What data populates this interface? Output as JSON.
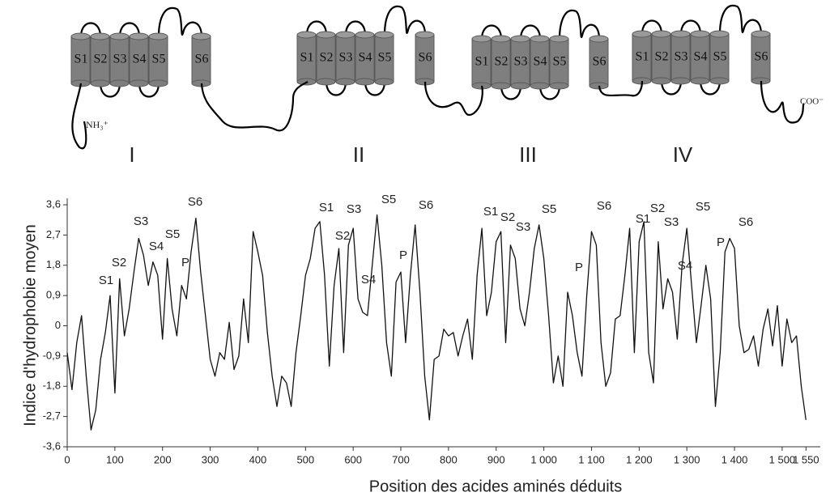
{
  "diagram": {
    "domains": [
      {
        "label": "I",
        "segments": [
          "S1",
          "S2",
          "S3",
          "S4",
          "S5",
          "S6"
        ]
      },
      {
        "label": "II",
        "segments": [
          "S1",
          "S2",
          "S3",
          "S4",
          "S5",
          "S6"
        ]
      },
      {
        "label": "III",
        "segments": [
          "S1",
          "S2",
          "S3",
          "S4",
          "S5",
          "S6"
        ]
      },
      {
        "label": "IV",
        "segments": [
          "S1",
          "S2",
          "S3",
          "S4",
          "S5",
          "S6"
        ]
      }
    ],
    "n_terminus": "NH₃⁺",
    "c_terminus": "COO⁻"
  },
  "chart_data": {
    "type": "line",
    "xlabel": "Position des acides aminés déduits",
    "ylabel": "Indice d'hydrophobie moyen",
    "color": "#111111",
    "xlim": [
      0,
      1580
    ],
    "ylim": [
      -3.6,
      3.6
    ],
    "xticks": [
      0,
      100,
      200,
      300,
      400,
      500,
      600,
      700,
      800,
      900,
      {
        "value": 1000,
        "label": "1 000"
      },
      {
        "value": 1100,
        "label": "1 100"
      },
      {
        "value": 1200,
        "label": "1 200"
      },
      {
        "value": 1300,
        "label": "1 300"
      },
      {
        "value": 1400,
        "label": "1 400"
      },
      {
        "value": 1500,
        "label": "1 500"
      },
      {
        "value": 1550,
        "label": "1 550"
      }
    ],
    "yticks": [
      {
        "value": 3.6,
        "label": "3,6"
      },
      {
        "value": 2.7,
        "label": "2,7"
      },
      {
        "value": 1.8,
        "label": "1,8"
      },
      {
        "value": 0.9,
        "label": "0,9"
      },
      0,
      {
        "value": -0.9,
        "label": "-0,9"
      },
      {
        "value": -1.8,
        "label": "-1,8"
      },
      {
        "value": -2.7,
        "label": "-2,7"
      },
      {
        "value": -3.6,
        "label": "-3,6"
      }
    ],
    "annotations": [
      "S1",
      "S2",
      "S3",
      "S4",
      "S5",
      "P",
      "S6",
      "S1",
      "S2",
      "S3",
      "S4",
      "S5",
      "P",
      "S6",
      "S1",
      "S2",
      "S3",
      "S5",
      "P",
      "S6",
      "S1",
      "S2",
      "S3",
      "S4",
      "S5",
      "P",
      "S6"
    ],
    "x": [
      0,
      10,
      20,
      30,
      40,
      50,
      60,
      70,
      80,
      90,
      100,
      110,
      120,
      130,
      140,
      150,
      160,
      170,
      180,
      190,
      200,
      210,
      220,
      230,
      240,
      250,
      260,
      270,
      280,
      290,
      300,
      310,
      320,
      330,
      340,
      350,
      360,
      370,
      380,
      390,
      400,
      410,
      420,
      430,
      440,
      450,
      460,
      470,
      480,
      490,
      500,
      510,
      520,
      530,
      540,
      550,
      560,
      570,
      580,
      590,
      600,
      610,
      620,
      630,
      640,
      650,
      660,
      670,
      680,
      690,
      700,
      710,
      720,
      730,
      740,
      750,
      760,
      770,
      780,
      790,
      800,
      810,
      820,
      830,
      840,
      850,
      860,
      870,
      880,
      890,
      900,
      910,
      920,
      930,
      940,
      950,
      960,
      970,
      980,
      990,
      1000,
      1010,
      1020,
      1030,
      1040,
      1050,
      1060,
      1070,
      1080,
      1090,
      1100,
      1110,
      1120,
      1130,
      1140,
      1150,
      1160,
      1170,
      1180,
      1190,
      1200,
      1210,
      1220,
      1230,
      1240,
      1250,
      1260,
      1270,
      1280,
      1290,
      1300,
      1310,
      1320,
      1330,
      1340,
      1350,
      1360,
      1370,
      1380,
      1390,
      1400,
      1410,
      1420,
      1430,
      1440,
      1450,
      1460,
      1470,
      1480,
      1490,
      1500,
      1510,
      1520,
      1530,
      1540,
      1550
    ],
    "values": [
      -0.8,
      -1.9,
      -0.5,
      0.3,
      -1.5,
      -3.1,
      -2.5,
      -1.0,
      -0.2,
      0.9,
      -2.0,
      1.4,
      -0.3,
      0.5,
      1.6,
      2.6,
      2.1,
      1.2,
      1.9,
      1.5,
      -0.4,
      2.0,
      0.5,
      -0.3,
      1.2,
      0.8,
      2.2,
      3.2,
      1.6,
      0.3,
      -1.0,
      -1.5,
      -0.8,
      -1.0,
      0.1,
      -1.3,
      -0.9,
      0.8,
      -0.5,
      2.8,
      2.2,
      1.5,
      -0.2,
      -1.5,
      -2.4,
      -1.5,
      -1.7,
      -2.4,
      -0.8,
      0.3,
      1.5,
      2.0,
      2.9,
      3.1,
      1.5,
      -1.2,
      1.2,
      2.3,
      -0.8,
      2.4,
      2.9,
      0.8,
      0.4,
      0.3,
      1.8,
      3.3,
      1.8,
      -0.5,
      -1.5,
      1.3,
      1.6,
      -0.5,
      1.5,
      3.0,
      1.0,
      -1.5,
      -2.8,
      -1.0,
      -0.9,
      -0.1,
      -0.3,
      -0.2,
      -0.9,
      -0.3,
      0.2,
      -1.0,
      1.5,
      2.9,
      0.3,
      1.0,
      2.5,
      2.8,
      -0.5,
      2.4,
      2.0,
      0.5,
      0.0,
      1.0,
      2.3,
      3.0,
      2.0,
      0.3,
      -1.7,
      -0.9,
      -1.8,
      1.0,
      0.3,
      -0.8,
      -1.5,
      0.9,
      2.8,
      2.4,
      -0.5,
      -1.8,
      -1.4,
      0.2,
      0.3,
      1.5,
      2.9,
      -0.8,
      2.5,
      3.1,
      -0.8,
      -1.7,
      2.5,
      0.5,
      1.4,
      1.0,
      -0.4,
      1.8,
      2.9,
      1.2,
      -0.5,
      0.6,
      1.8,
      0.8,
      -2.4,
      -0.8,
      2.2,
      2.6,
      2.3,
      0.0,
      -0.8,
      -0.7,
      -0.3,
      -1.2,
      -0.1,
      0.5,
      -0.6,
      0.6,
      -1.2,
      0.2,
      -0.5,
      -0.3,
      -1.8,
      -2.8
    ]
  }
}
